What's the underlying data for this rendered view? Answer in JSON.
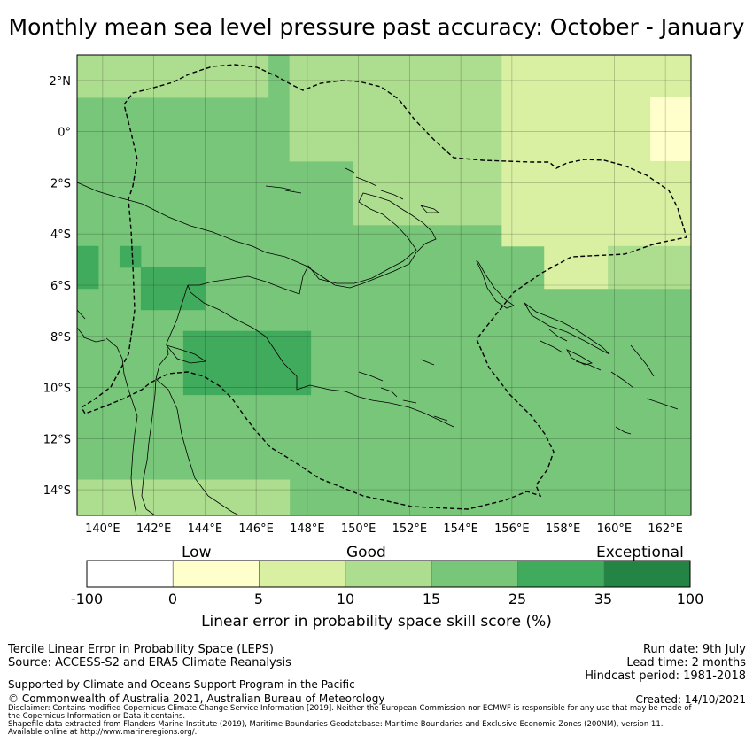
{
  "title": "Monthly mean sea level pressure past accuracy: October - January",
  "map": {
    "lat_ticks": [
      "2°N",
      "0°",
      "2°S",
      "4°S",
      "6°S",
      "8°S",
      "10°S",
      "12°S",
      "14°S"
    ],
    "lon_ticks": [
      "140°E",
      "142°E",
      "144°E",
      "146°E",
      "148°E",
      "150°E",
      "152°E",
      "154°E",
      "156°E",
      "158°E",
      "160°E",
      "162°E"
    ],
    "extent": {
      "lon_min": 139,
      "lon_max": 163,
      "lat_min": -15,
      "lat_max": 3
    },
    "cell_deg": 0.83
  },
  "colorbar": {
    "words": {
      "low": "Low",
      "good": "Good",
      "exceptional": "Exceptional"
    },
    "ticks": [
      "-100",
      "0",
      "5",
      "10",
      "15",
      "25",
      "35",
      "100"
    ],
    "colors": [
      "#ffffff",
      "#ffffcc",
      "#d9f0a3",
      "#addd8e",
      "#78c679",
      "#41ab5d",
      "#238443"
    ],
    "label": "Linear error in probability space skill score (%)"
  },
  "footer": {
    "left1": "Tercile Linear Error in Probability Space (LEPS)",
    "left2": "Source: ACCESS-S2 and ERA5 Climate Reanalysis",
    "support": "Supported by Climate and Oceans Support Program in the Pacific",
    "copyright": "© Commonwealth of Australia 2021, Australian Bureau of Meteorology",
    "run_date": "Run date: 9th July",
    "lead_time": "Lead time: 2 months",
    "hindcast": "Hindcast period: 1981-2018",
    "created": "Created: 14/10/2021",
    "disclaimer1": "Disclaimer: Contains modified Copernicus Climate Change Service Information [2019]. Neither the European Commission nor ECMWF is responsible for any use that may be made of",
    "disclaimer2": "the Copernicus Information or Data it contains.",
    "shapefile1": "Shapefile data extracted from Flanders Marine Institute (2019), Maritime Boundaries Geodatabase: Maritime Boundaries and Exclusive Economic Zones (200NM), version 11.",
    "shapefile2": "Available online at http://www.marineregions.org/."
  }
}
